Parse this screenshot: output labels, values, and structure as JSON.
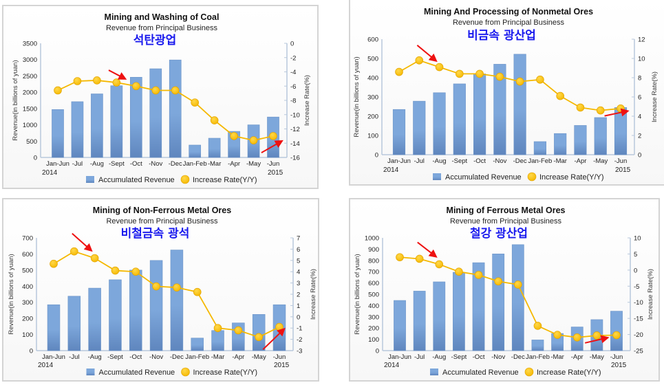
{
  "colors": {
    "bar": "#7da7db",
    "bar_dark": "#5f86be",
    "line": "#f5b800",
    "marker": "#f5b800",
    "marker_edge": "#e0a000",
    "axis": "#b8c8dc",
    "arrow": "#ee1111",
    "korean_title": "#1a1aee"
  },
  "shared": {
    "subtitle": "Revenue from Principal Business",
    "ylabel_left": "Revenue(in billions of yuan)",
    "ylabel_right": "Increase Rate(%)",
    "legend": [
      "Accumulated Revenue",
      "Increase Rate(Y/Y)"
    ],
    "year_start": "2014",
    "year_end": "2015",
    "categories": [
      "Jan-Jun",
      "-Jul",
      "-Aug",
      "-Sept",
      "-Oct",
      "-Nov",
      "-Dec",
      "Jan-Feb",
      "-Mar",
      "-Apr",
      "-May",
      "-Jun"
    ]
  },
  "chart_data": [
    {
      "type": "bar",
      "title": "Mining and Washing of Coal",
      "subtitle": "Revenue from Principal Business",
      "korean_title": "석탄광업",
      "xlabel": "",
      "ylabel": "Revenue(in billions of yuan)",
      "y2label": "Increase Rate(%)",
      "categories": [
        "Jan-Jun",
        "-Jul",
        "-Aug",
        "-Sept",
        "-Oct",
        "-Nov",
        "-Dec",
        "Jan-Feb",
        "-Mar",
        "-Apr",
        "-May",
        "-Jun"
      ],
      "series": [
        {
          "name": "Accumulated Revenue",
          "type": "bar",
          "axis": "left",
          "values": [
            1470,
            1710,
            1950,
            2200,
            2460,
            2720,
            2990,
            380,
            590,
            800,
            1000,
            1240
          ]
        },
        {
          "name": "Increase Rate(Y/Y)",
          "type": "line",
          "axis": "right",
          "values": [
            -6.6,
            -5.3,
            -5.2,
            -5.5,
            -6.0,
            -6.6,
            -6.6,
            -8.3,
            -10.8,
            -13.0,
            -13.6,
            -13.0
          ]
        }
      ],
      "ylim": [
        0,
        3500
      ],
      "yticks": [
        0,
        500,
        1000,
        1500,
        2000,
        2500,
        3000,
        3500
      ],
      "y2lim": [
        -16,
        0
      ],
      "y2ticks": [
        -16,
        -14,
        -12,
        -10,
        -8,
        -6,
        -4,
        -2,
        0
      ],
      "annotations": [
        "red arrow near -Sept pointing down-right",
        "red arrow near -Jun pointing up-right"
      ],
      "legend_position": "bottom"
    },
    {
      "type": "bar",
      "title": "Mining And Processing of Nonmetal Ores",
      "subtitle": "Revenue from Principal Business",
      "korean_title": "비금속 광산업",
      "xlabel": "",
      "ylabel": "Revenue(in billions of yuan)",
      "y2label": "Increase Rate(%)",
      "categories": [
        "Jan-Jun",
        "-Jul",
        "-Aug",
        "-Sept",
        "-Oct",
        "-Nov",
        "-Dec",
        "Jan-Feb",
        "-Mar",
        "-Apr",
        "-May",
        "-Jun"
      ],
      "series": [
        {
          "name": "Accumulated Revenue",
          "type": "bar",
          "axis": "left",
          "values": [
            235,
            278,
            322,
            368,
            420,
            470,
            522,
            68,
            110,
            152,
            193,
            245
          ]
        },
        {
          "name": "Increase Rate(Y/Y)",
          "type": "line",
          "axis": "right",
          "values": [
            8.6,
            9.8,
            9.1,
            8.4,
            8.4,
            8.1,
            7.6,
            7.8,
            6.1,
            4.9,
            4.6,
            4.8
          ]
        }
      ],
      "ylim": [
        0,
        600
      ],
      "yticks": [
        0,
        100,
        200,
        300,
        400,
        500,
        600
      ],
      "y2lim": [
        0,
        12
      ],
      "y2ticks": [
        0,
        2,
        4,
        6,
        8,
        10,
        12
      ],
      "annotations": [
        "red arrow near -Aug pointing down-right",
        "red arrow near -Jun pointing right"
      ],
      "legend_position": "bottom"
    },
    {
      "type": "bar",
      "title": "Mining of Non-Ferrous Metal Ores",
      "subtitle": "Revenue from Principal Business",
      "korean_title": "비철금속 광석",
      "xlabel": "",
      "ylabel": "Revenue(in billions of yuan)",
      "y2label": "Increase Rate(%)",
      "categories": [
        "Jan-Jun",
        "-Jul",
        "-Aug",
        "-Sept",
        "-Oct",
        "-Nov",
        "-Dec",
        "Jan-Feb",
        "-Mar",
        "-Apr",
        "-May",
        "-Jun"
      ],
      "series": [
        {
          "name": "Accumulated Revenue",
          "type": "bar",
          "axis": "left",
          "values": [
            285,
            338,
            388,
            440,
            500,
            560,
            625,
            78,
            125,
            172,
            225,
            285
          ]
        },
        {
          "name": "Increase Rate(Y/Y)",
          "type": "line",
          "axis": "right",
          "values": [
            4.7,
            5.8,
            5.2,
            4.1,
            4.0,
            2.7,
            2.6,
            2.2,
            -1.0,
            -1.2,
            -1.8,
            -0.9
          ]
        }
      ],
      "ylim": [
        0,
        700
      ],
      "yticks": [
        0,
        100,
        200,
        300,
        400,
        500,
        600,
        700
      ],
      "y2lim": [
        -3,
        7
      ],
      "y2ticks": [
        -3,
        -2,
        -1,
        0,
        1,
        2,
        3,
        4,
        5,
        6,
        7
      ],
      "annotations": [
        "red arrow near -Aug pointing down-right",
        "red arrow near -Jun pointing up-right"
      ],
      "legend_position": "bottom"
    },
    {
      "type": "bar",
      "title": "Mining of Ferrous Metal Ores",
      "subtitle": "Revenue from Principal Business",
      "korean_title": "철강 광산업",
      "xlabel": "",
      "ylabel": "Revenue(in billions of yuan)",
      "y2label": "Increase Rate(%)",
      "categories": [
        "Jan-Jun",
        "-Jul",
        "-Aug",
        "-Sept",
        "-Oct",
        "-Nov",
        "-Dec",
        "Jan-Feb",
        "-Mar",
        "-Apr",
        "-May",
        "-Jun"
      ],
      "series": [
        {
          "name": "Accumulated Revenue",
          "type": "bar",
          "axis": "left",
          "values": [
            445,
            528,
            610,
            695,
            780,
            858,
            940,
            95,
            152,
            210,
            275,
            350
          ]
        },
        {
          "name": "Increase Rate(Y/Y)",
          "type": "line",
          "axis": "right",
          "values": [
            4.0,
            3.5,
            1.8,
            -0.5,
            -1.5,
            -3.5,
            -4.5,
            -17.3,
            -20.1,
            -20.9,
            -20.3,
            -20.2
          ]
        }
      ],
      "ylim": [
        0,
        1000
      ],
      "yticks": [
        0,
        100,
        200,
        300,
        400,
        500,
        600,
        700,
        800,
        900,
        1000
      ],
      "y2lim": [
        -25,
        10
      ],
      "y2ticks": [
        -25,
        -20,
        -15,
        -10,
        -5,
        0,
        5,
        10
      ],
      "annotations": [
        "red arrow near -Aug pointing down-right",
        "red arrow near -May pointing right"
      ],
      "legend_position": "bottom"
    }
  ]
}
